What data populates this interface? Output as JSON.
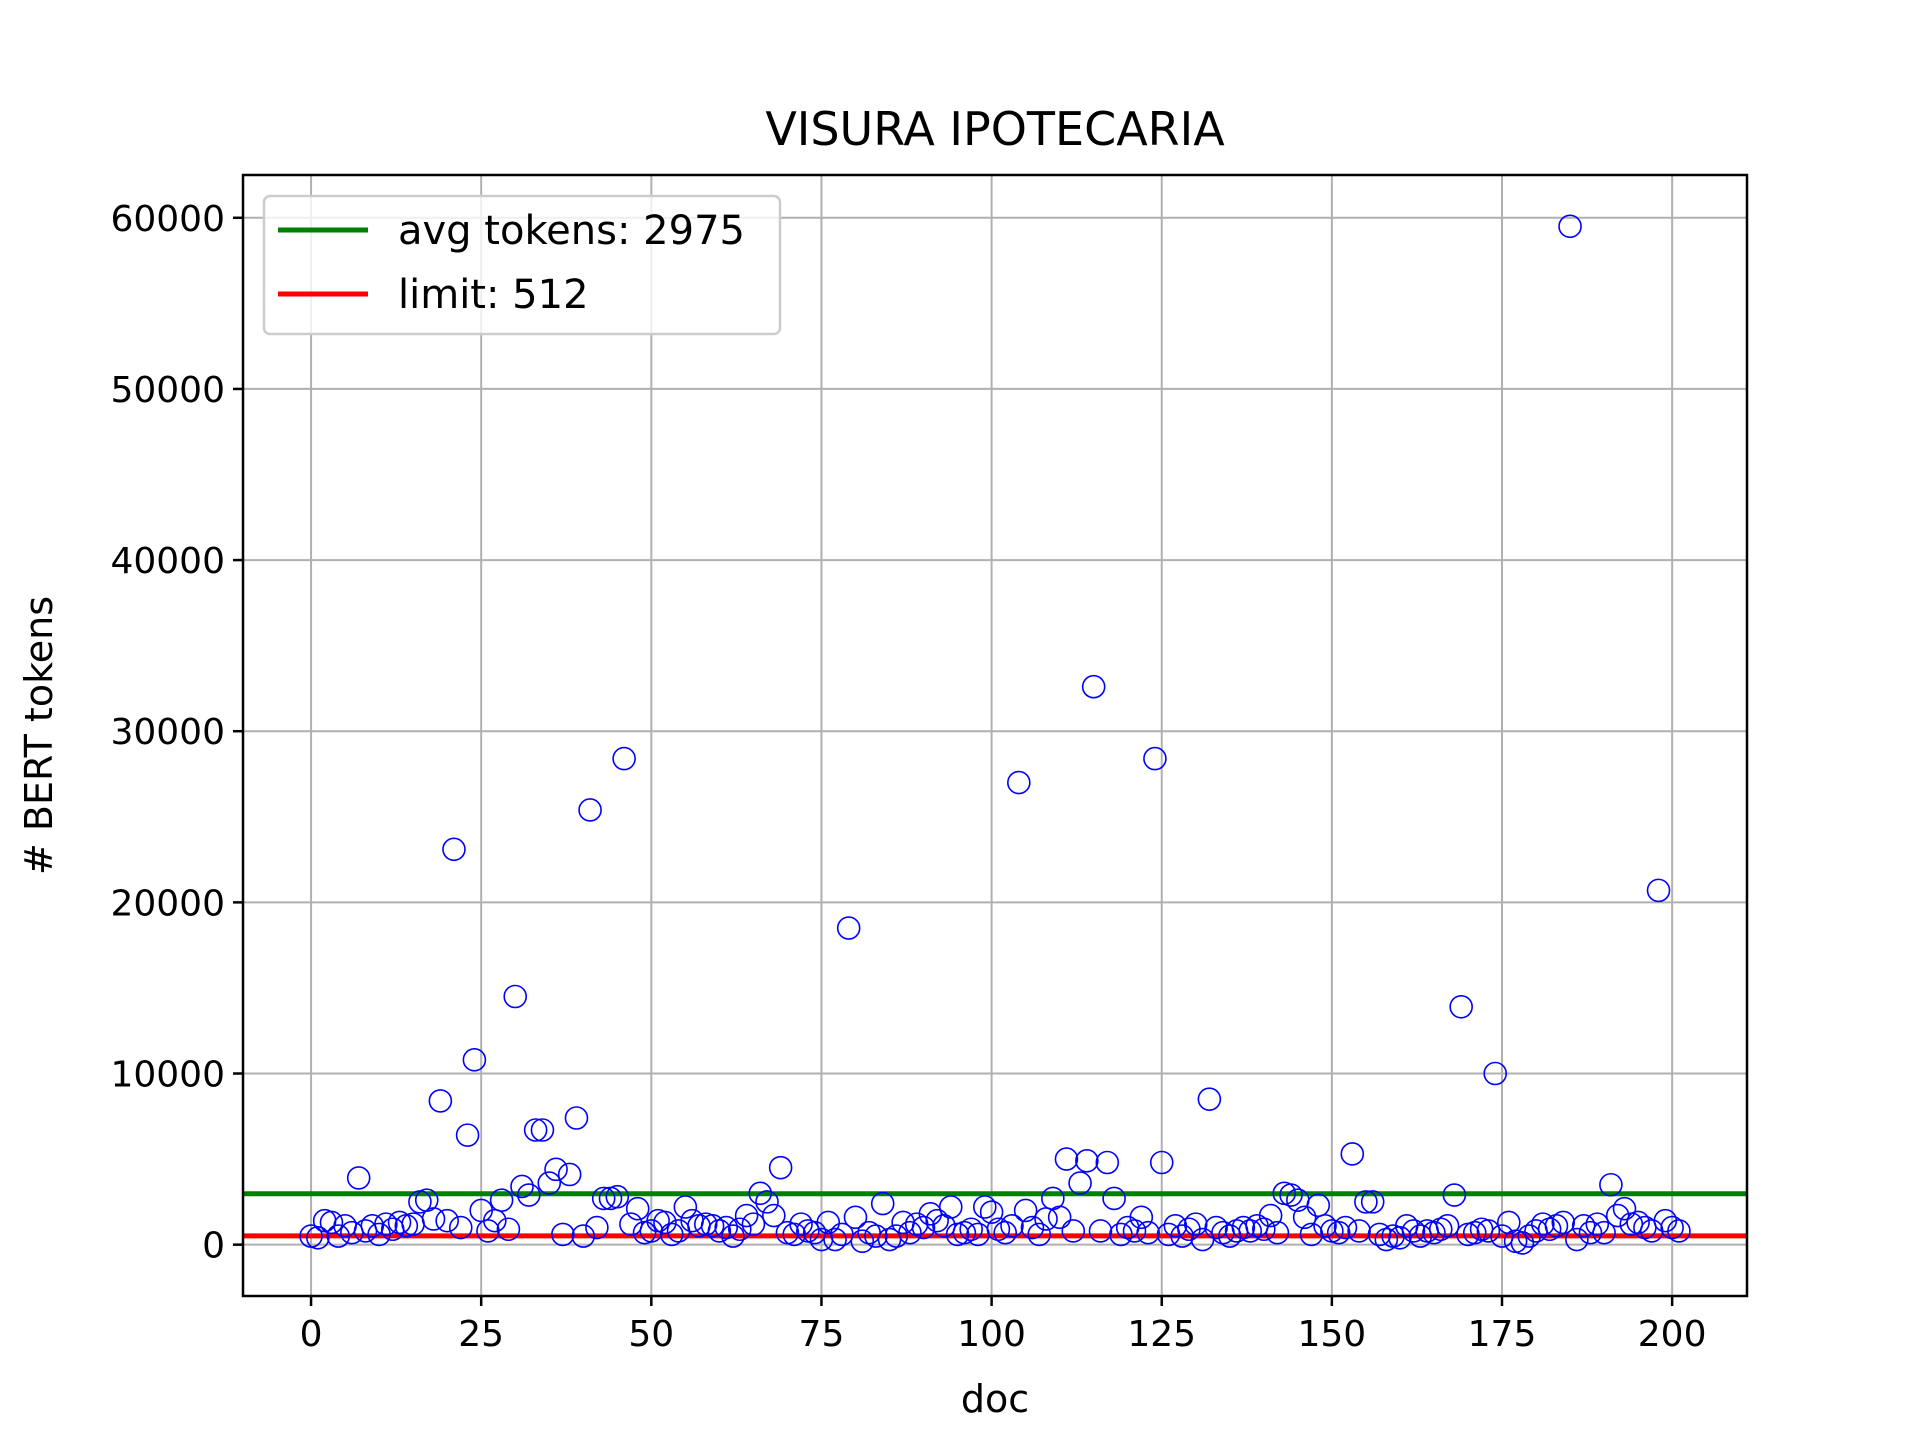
{
  "chart_data": {
    "type": "scatter",
    "title": "VISURA IPOTECARIA",
    "xlabel": "doc",
    "ylabel": "# BERT tokens",
    "xlim": [
      -10,
      211
    ],
    "ylim": [
      -3000,
      62500
    ],
    "xticks": [
      0,
      25,
      50,
      75,
      100,
      125,
      150,
      175,
      200
    ],
    "yticks": [
      0,
      10000,
      20000,
      30000,
      40000,
      50000,
      60000
    ],
    "grid": true,
    "legend_position": "upper-left",
    "lines": [
      {
        "label": "avg tokens: 2975",
        "y": 2975,
        "color": "#008000"
      },
      {
        "label": "limit: 512",
        "y": 512,
        "color": "#ff0000"
      }
    ],
    "marker_color": "#0000ff",
    "points": [
      [
        0,
        500
      ],
      [
        1,
        400
      ],
      [
        2,
        1400
      ],
      [
        3,
        1300
      ],
      [
        4,
        500
      ],
      [
        5,
        1100
      ],
      [
        6,
        700
      ],
      [
        7,
        3900
      ],
      [
        8,
        800
      ],
      [
        9,
        1100
      ],
      [
        10,
        600
      ],
      [
        11,
        1200
      ],
      [
        12,
        900
      ],
      [
        13,
        1300
      ],
      [
        14,
        1100
      ],
      [
        15,
        1200
      ],
      [
        16,
        2500
      ],
      [
        17,
        2600
      ],
      [
        18,
        1500
      ],
      [
        19,
        8400
      ],
      [
        20,
        1400
      ],
      [
        21,
        23100
      ],
      [
        22,
        1000
      ],
      [
        23,
        6400
      ],
      [
        24,
        10800
      ],
      [
        25,
        2000
      ],
      [
        26,
        800
      ],
      [
        27,
        1400
      ],
      [
        28,
        2600
      ],
      [
        29,
        900
      ],
      [
        30,
        14500
      ],
      [
        31,
        3400
      ],
      [
        32,
        2900
      ],
      [
        33,
        6700
      ],
      [
        34,
        6700
      ],
      [
        35,
        3600
      ],
      [
        36,
        4400
      ],
      [
        37,
        600
      ],
      [
        38,
        4100
      ],
      [
        39,
        7400
      ],
      [
        40,
        500
      ],
      [
        41,
        25400
      ],
      [
        42,
        1000
      ],
      [
        43,
        2700
      ],
      [
        44,
        2700
      ],
      [
        45,
        2800
      ],
      [
        46,
        28400
      ],
      [
        47,
        1200
      ],
      [
        48,
        2100
      ],
      [
        49,
        700
      ],
      [
        50,
        800
      ],
      [
        51,
        1400
      ],
      [
        52,
        1300
      ],
      [
        53,
        600
      ],
      [
        54,
        800
      ],
      [
        55,
        2200
      ],
      [
        56,
        1400
      ],
      [
        57,
        1100
      ],
      [
        58,
        1200
      ],
      [
        59,
        1100
      ],
      [
        60,
        800
      ],
      [
        61,
        1000
      ],
      [
        62,
        500
      ],
      [
        63,
        900
      ],
      [
        64,
        1700
      ],
      [
        65,
        1200
      ],
      [
        66,
        3000
      ],
      [
        67,
        2500
      ],
      [
        68,
        1700
      ],
      [
        69,
        4500
      ],
      [
        70,
        700
      ],
      [
        71,
        600
      ],
      [
        72,
        1200
      ],
      [
        73,
        800
      ],
      [
        74,
        700
      ],
      [
        75,
        300
      ],
      [
        76,
        1300
      ],
      [
        77,
        300
      ],
      [
        78,
        600
      ],
      [
        79,
        18500
      ],
      [
        80,
        1600
      ],
      [
        81,
        200
      ],
      [
        82,
        700
      ],
      [
        83,
        500
      ],
      [
        84,
        2400
      ],
      [
        85,
        300
      ],
      [
        86,
        500
      ],
      [
        87,
        1300
      ],
      [
        88,
        700
      ],
      [
        89,
        1200
      ],
      [
        90,
        1000
      ],
      [
        91,
        1800
      ],
      [
        92,
        1400
      ],
      [
        93,
        1100
      ],
      [
        94,
        2200
      ],
      [
        95,
        600
      ],
      [
        96,
        700
      ],
      [
        97,
        900
      ],
      [
        98,
        600
      ],
      [
        99,
        2200
      ],
      [
        100,
        1900
      ],
      [
        101,
        900
      ],
      [
        102,
        700
      ],
      [
        103,
        1100
      ],
      [
        104,
        27000
      ],
      [
        105,
        2000
      ],
      [
        106,
        1000
      ],
      [
        107,
        600
      ],
      [
        108,
        1500
      ],
      [
        109,
        2700
      ],
      [
        110,
        1600
      ],
      [
        111,
        5000
      ],
      [
        112,
        800
      ],
      [
        113,
        3600
      ],
      [
        114,
        4900
      ],
      [
        115,
        32600
      ],
      [
        116,
        800
      ],
      [
        117,
        4800
      ],
      [
        118,
        2700
      ],
      [
        119,
        600
      ],
      [
        120,
        1000
      ],
      [
        121,
        800
      ],
      [
        122,
        1600
      ],
      [
        123,
        700
      ],
      [
        124,
        28400
      ],
      [
        125,
        4800
      ],
      [
        126,
        600
      ],
      [
        127,
        1100
      ],
      [
        128,
        500
      ],
      [
        129,
        900
      ],
      [
        130,
        1200
      ],
      [
        131,
        300
      ],
      [
        132,
        8500
      ],
      [
        133,
        1000
      ],
      [
        134,
        700
      ],
      [
        135,
        500
      ],
      [
        136,
        800
      ],
      [
        137,
        1000
      ],
      [
        138,
        800
      ],
      [
        139,
        1100
      ],
      [
        140,
        900
      ],
      [
        141,
        1700
      ],
      [
        142,
        700
      ],
      [
        143,
        3000
      ],
      [
        144,
        2900
      ],
      [
        145,
        2600
      ],
      [
        146,
        1600
      ],
      [
        147,
        600
      ],
      [
        148,
        2300
      ],
      [
        149,
        1100
      ],
      [
        150,
        800
      ],
      [
        151,
        700
      ],
      [
        152,
        1000
      ],
      [
        153,
        5300
      ],
      [
        154,
        800
      ],
      [
        155,
        2500
      ],
      [
        156,
        2500
      ],
      [
        157,
        600
      ],
      [
        158,
        300
      ],
      [
        159,
        500
      ],
      [
        160,
        400
      ],
      [
        161,
        1100
      ],
      [
        162,
        800
      ],
      [
        163,
        500
      ],
      [
        164,
        800
      ],
      [
        165,
        700
      ],
      [
        166,
        900
      ],
      [
        167,
        1100
      ],
      [
        168,
        2900
      ],
      [
        169,
        13900
      ],
      [
        170,
        600
      ],
      [
        171,
        700
      ],
      [
        172,
        900
      ],
      [
        173,
        800
      ],
      [
        174,
        10000
      ],
      [
        175,
        500
      ],
      [
        176,
        1300
      ],
      [
        177,
        200
      ],
      [
        178,
        100
      ],
      [
        179,
        500
      ],
      [
        180,
        800
      ],
      [
        181,
        1200
      ],
      [
        182,
        900
      ],
      [
        183,
        1100
      ],
      [
        184,
        1300
      ],
      [
        185,
        59500
      ],
      [
        186,
        300
      ],
      [
        187,
        1100
      ],
      [
        188,
        700
      ],
      [
        189,
        1200
      ],
      [
        190,
        700
      ],
      [
        191,
        3500
      ],
      [
        192,
        1700
      ],
      [
        193,
        2100
      ],
      [
        194,
        1200
      ],
      [
        195,
        1300
      ],
      [
        196,
        1000
      ],
      [
        197,
        800
      ],
      [
        198,
        20700
      ],
      [
        199,
        1400
      ],
      [
        200,
        1000
      ],
      [
        201,
        800
      ]
    ]
  }
}
